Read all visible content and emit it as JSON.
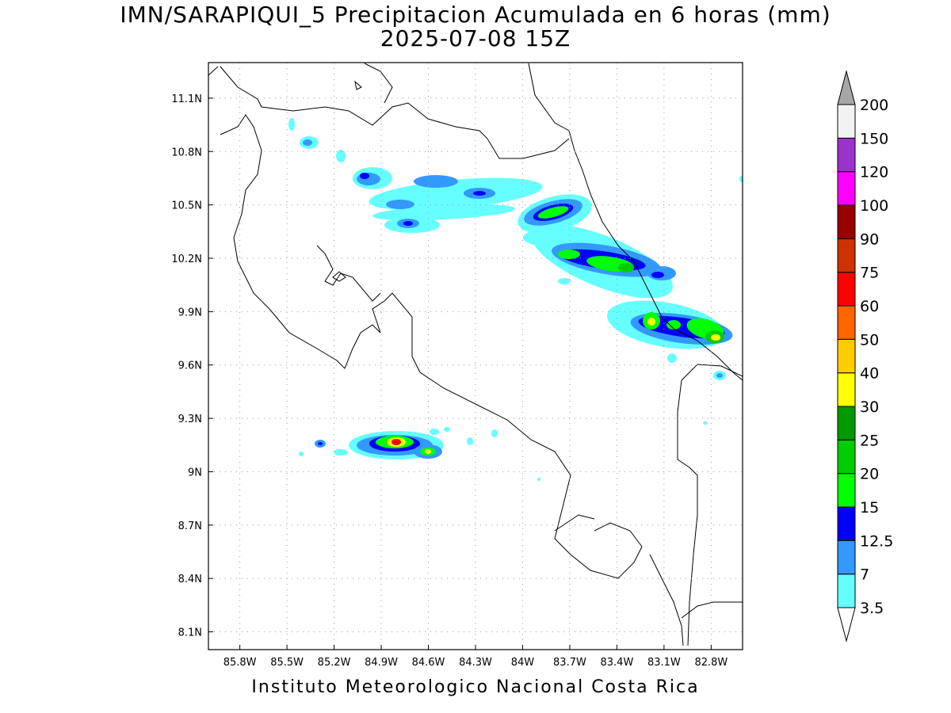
{
  "title": {
    "line1": "IMN/SARAPIQUI_5 Precipitacion Acumulada en 6 horas (mm)",
    "line2": "2025-07-08 15Z"
  },
  "footer": "Instituto Meteorologico Nacional Costa Rica",
  "map": {
    "lon_range": [
      -86.0,
      -82.6
    ],
    "lat_range": [
      8.0,
      11.3
    ],
    "lon_ticks": [
      {
        "value": -85.8,
        "label": "85.8W"
      },
      {
        "value": -85.5,
        "label": "85.5W"
      },
      {
        "value": -85.2,
        "label": "85.2W"
      },
      {
        "value": -84.9,
        "label": "84.9W"
      },
      {
        "value": -84.6,
        "label": "84.6W"
      },
      {
        "value": -84.3,
        "label": "84.3W"
      },
      {
        "value": -84.0,
        "label": "84W"
      },
      {
        "value": -83.7,
        "label": "83.7W"
      },
      {
        "value": -83.4,
        "label": "83.4W"
      },
      {
        "value": -83.1,
        "label": "83.1W"
      },
      {
        "value": -82.8,
        "label": "82.8W"
      }
    ],
    "lat_ticks": [
      {
        "value": 8.1,
        "label": "8.1N"
      },
      {
        "value": 8.4,
        "label": "8.4N"
      },
      {
        "value": 8.7,
        "label": "8.7N"
      },
      {
        "value": 9.0,
        "label": "9N"
      },
      {
        "value": 9.3,
        "label": "9.3N"
      },
      {
        "value": 9.6,
        "label": "9.6N"
      },
      {
        "value": 9.9,
        "label": "9.9N"
      },
      {
        "value": 10.2,
        "label": "10.2N"
      },
      {
        "value": 10.5,
        "label": "10.5N"
      },
      {
        "value": 10.8,
        "label": "10.8N"
      },
      {
        "value": 11.1,
        "label": "11.1N"
      }
    ],
    "grid": "dotted"
  },
  "colorbar": {
    "levels": [
      "3.5",
      "7",
      "12.5",
      "15",
      "20",
      "25",
      "30",
      "40",
      "50",
      "60",
      "75",
      "90",
      "100",
      "120",
      "150",
      "200"
    ],
    "colors": [
      "#ffffff",
      "#66ffff",
      "#3399ff",
      "#0000ff",
      "#00ff00",
      "#00cc00",
      "#009900",
      "#ffff00",
      "#ffcc00",
      "#ff6600",
      "#ff0000",
      "#cc3300",
      "#990000",
      "#ff00ff",
      "#9933cc",
      "#f2f2f2",
      "#a6a6a6"
    ]
  },
  "precipitation_cells": [
    {
      "lon": -83.65,
      "lat": 10.48,
      "level": "20"
    },
    {
      "lon": -83.25,
      "lat": 10.2,
      "level": "20"
    },
    {
      "lon": -83.55,
      "lat": 10.22,
      "level": "20"
    },
    {
      "lon": -83.1,
      "lat": 9.86,
      "level": "30"
    },
    {
      "lon": -82.73,
      "lat": 9.76,
      "level": "30"
    },
    {
      "lon": -84.78,
      "lat": 9.17,
      "level": "75"
    },
    {
      "lon": -84.57,
      "lat": 9.11,
      "level": "30"
    },
    {
      "lon": -84.6,
      "lat": 10.38,
      "level": "12.5"
    },
    {
      "lon": -84.93,
      "lat": 10.67,
      "level": "12.5"
    }
  ]
}
